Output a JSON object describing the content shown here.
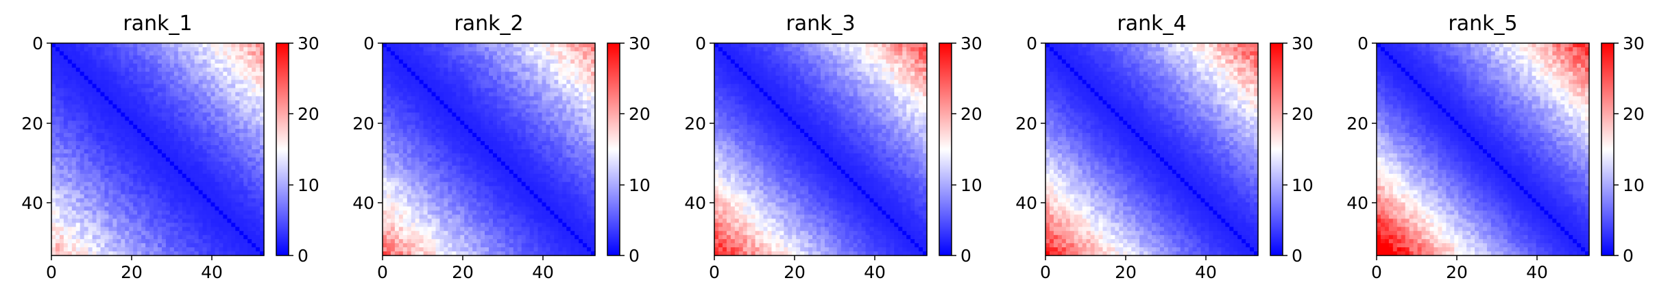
{
  "chart_data": [
    {
      "type": "heatmap",
      "title": "rank_1",
      "size": 52,
      "x_ticks": [
        "0",
        "20",
        "40"
      ],
      "y_ticks": [
        "0",
        "20",
        "40"
      ],
      "colorbar_ticks": [
        "0",
        "10",
        "20",
        "30"
      ],
      "vmin": 0,
      "vmax": 30,
      "colormap": "bwr",
      "corner_max": 24,
      "lower_left_strength": 0.72,
      "upper_right_strength": 0.82
    },
    {
      "type": "heatmap",
      "title": "rank_2",
      "size": 52,
      "x_ticks": [
        "0",
        "20",
        "40"
      ],
      "y_ticks": [
        "0",
        "20",
        "40"
      ],
      "colorbar_ticks": [
        "0",
        "10",
        "20",
        "30"
      ],
      "vmin": 0,
      "vmax": 30,
      "colormap": "bwr",
      "corner_max": 24,
      "lower_left_strength": 0.9,
      "upper_right_strength": 0.85
    },
    {
      "type": "heatmap",
      "title": "rank_3",
      "size": 52,
      "x_ticks": [
        "0",
        "20",
        "40"
      ],
      "y_ticks": [
        "0",
        "20",
        "40"
      ],
      "colorbar_ticks": [
        "0",
        "10",
        "20",
        "30"
      ],
      "vmin": 0,
      "vmax": 30,
      "colormap": "bwr",
      "corner_max": 26,
      "lower_left_strength": 1.0,
      "upper_right_strength": 0.9
    },
    {
      "type": "heatmap",
      "title": "rank_4",
      "size": 52,
      "x_ticks": [
        "0",
        "20",
        "40"
      ],
      "y_ticks": [
        "0",
        "20",
        "40"
      ],
      "colorbar_ticks": [
        "0",
        "10",
        "20",
        "30"
      ],
      "vmin": 0,
      "vmax": 30,
      "colormap": "bwr",
      "corner_max": 26,
      "lower_left_strength": 1.0,
      "upper_right_strength": 0.9
    },
    {
      "type": "heatmap",
      "title": "rank_5",
      "size": 52,
      "x_ticks": [
        "0",
        "20",
        "40"
      ],
      "y_ticks": [
        "0",
        "20",
        "40"
      ],
      "colorbar_ticks": [
        "0",
        "10",
        "20",
        "30"
      ],
      "vmin": 0,
      "vmax": 30,
      "colormap": "bwr",
      "corner_max": 27,
      "lower_left_strength": 1.15,
      "upper_right_strength": 0.95
    }
  ]
}
